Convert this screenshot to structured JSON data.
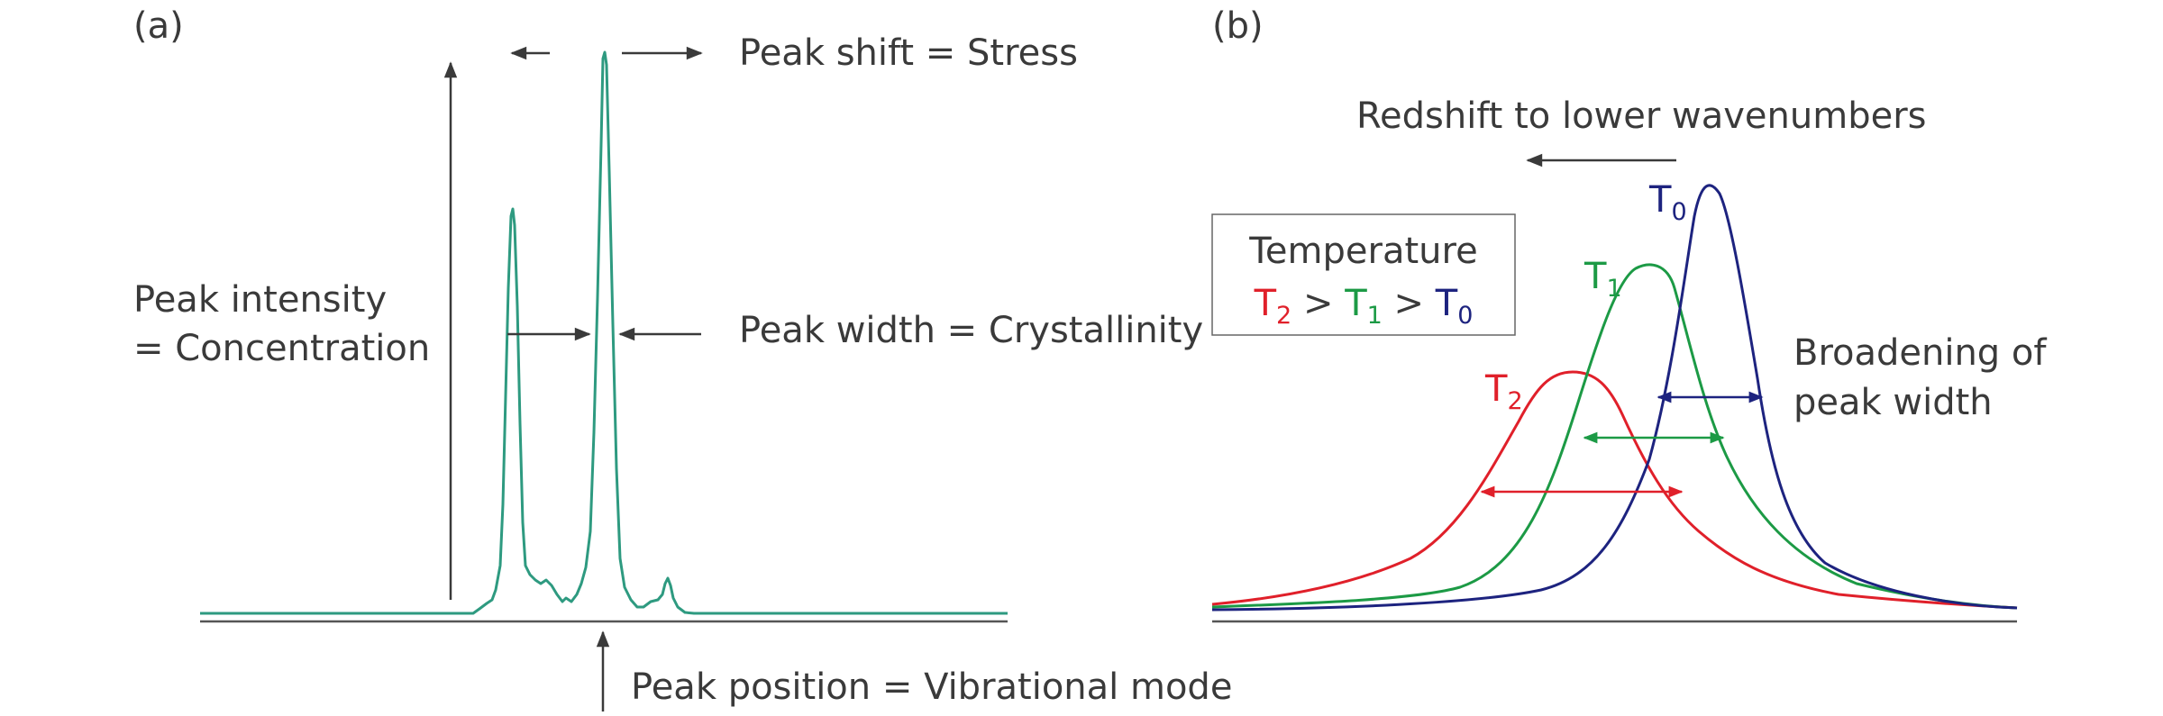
{
  "panel_a": {
    "tag": "(a)",
    "peak_shift": "Peak shift = Stress",
    "intensity_line1": "Peak intensity",
    "intensity_line2": "= Concentration",
    "width_label": "Peak width = Crystallinity",
    "position_label": "Peak position = Vibrational mode",
    "spectrum_color": "#2e9a80"
  },
  "panel_b": {
    "tag": "(b)",
    "redshift_label": "Redshift to lower wavenumbers",
    "legend_title": "Temperature",
    "legend_order": [
      {
        "base": "T",
        "sub": "2",
        "color": "#e0202a"
      },
      {
        "sep": " > "
      },
      {
        "base": "T",
        "sub": "1",
        "color": "#1c9a45"
      },
      {
        "sep": " > "
      },
      {
        "base": "T",
        "sub": "0",
        "color": "#1d237f"
      }
    ],
    "broadening_line1": "Broadening of",
    "broadening_line2": "peak width",
    "curves": [
      {
        "base": "T",
        "sub": "0",
        "color": "#1d237f"
      },
      {
        "base": "T",
        "sub": "1",
        "color": "#1c9a45"
      },
      {
        "base": "T",
        "sub": "2",
        "color": "#e0202a"
      }
    ]
  },
  "colors": {
    "text": "#3a3a3a",
    "arrow": "#3a3a3a",
    "axis": "#555555"
  }
}
